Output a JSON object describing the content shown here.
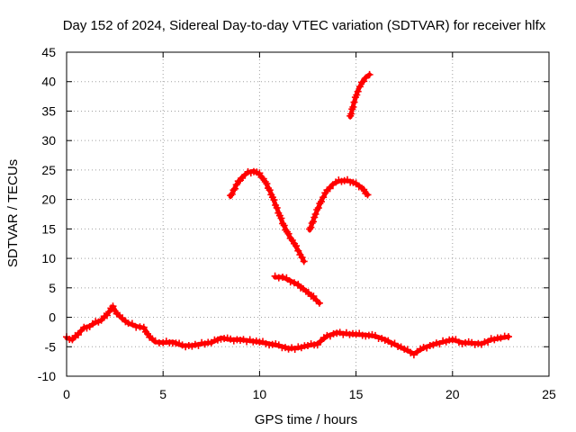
{
  "chart_data": {
    "type": "scatter",
    "title": "Day 152 of 2024, Sidereal Day-to-day VTEC variation (SDTVAR) for receiver hlfx",
    "xlabel": "GPS time / hours",
    "ylabel": "SDTVAR / TECUs",
    "xlim": [
      0,
      25
    ],
    "ylim": [
      -10,
      45
    ],
    "xticks": [
      "0",
      "5",
      "10",
      "15",
      "20",
      "25"
    ],
    "yticks": [
      "-10",
      "-5",
      "0",
      "5",
      "10",
      "15",
      "20",
      "25",
      "30",
      "35",
      "40",
      "45"
    ],
    "grid": true,
    "color": "#ff0000",
    "series": [
      {
        "name": "arc-baseline",
        "x": [
          0.0,
          0.3,
          0.6,
          0.9,
          1.2,
          1.5,
          1.8,
          2.1,
          2.4,
          2.6,
          2.9,
          3.2,
          3.6,
          4.0,
          4.3,
          4.6,
          5.0,
          5.5,
          6.0,
          6.5,
          7.0,
          7.5,
          8.0,
          8.5,
          9.0,
          9.5,
          10.0,
          10.5,
          11.0,
          11.5,
          12.0,
          12.5,
          13.0,
          13.5,
          14.0,
          14.5,
          15.0,
          15.5,
          16.0,
          16.5,
          17.0,
          17.5,
          18.0,
          18.5,
          19.0,
          19.5,
          20.0,
          20.5,
          21.0,
          21.5,
          22.0,
          22.5,
          22.9
        ],
        "y": [
          -3.5,
          -3.8,
          -2.8,
          -1.8,
          -1.5,
          -0.9,
          -0.5,
          0.5,
          1.8,
          0.7,
          -0.3,
          -1.0,
          -1.5,
          -1.8,
          -3.3,
          -4.2,
          -4.3,
          -4.2,
          -4.8,
          -4.8,
          -4.5,
          -4.3,
          -3.5,
          -3.8,
          -3.8,
          -4.0,
          -4.2,
          -4.5,
          -4.8,
          -5.3,
          -5.2,
          -4.8,
          -4.5,
          -3.2,
          -2.6,
          -2.8,
          -2.9,
          -3.0,
          -3.2,
          -3.8,
          -4.6,
          -5.4,
          -6.2,
          -5.2,
          -4.6,
          -4.2,
          -3.8,
          -4.3,
          -4.4,
          -4.5,
          -3.8,
          -3.5,
          -3.3
        ]
      },
      {
        "name": "arc-2",
        "x": [
          8.5,
          8.8,
          9.1,
          9.4,
          9.7,
          10.0,
          10.3,
          10.6,
          10.9,
          11.2,
          11.5,
          11.8,
          12.1,
          12.3
        ],
        "y": [
          20.5,
          22.5,
          23.8,
          24.6,
          24.8,
          24.3,
          23.0,
          21.0,
          18.5,
          16.0,
          14.0,
          12.5,
          10.8,
          9.5
        ]
      },
      {
        "name": "arc-3",
        "x": [
          12.6,
          12.9,
          13.2,
          13.5,
          13.8,
          14.1,
          14.4,
          14.7,
          15.0,
          15.3,
          15.6
        ],
        "y": [
          14.8,
          17.5,
          19.8,
          21.5,
          22.6,
          23.1,
          23.2,
          23.1,
          22.7,
          22.0,
          20.8
        ]
      },
      {
        "name": "arc-4",
        "x": [
          14.7,
          14.9,
          15.1,
          15.3,
          15.5,
          15.7
        ],
        "y": [
          34.0,
          36.5,
          38.5,
          39.8,
          40.7,
          41.2
        ]
      },
      {
        "name": "arc-5",
        "x": [
          10.8,
          11.2,
          11.6,
          12.0,
          12.4,
          12.8,
          13.1
        ],
        "y": [
          6.8,
          6.8,
          6.2,
          5.5,
          4.5,
          3.4,
          2.4
        ]
      }
    ]
  }
}
